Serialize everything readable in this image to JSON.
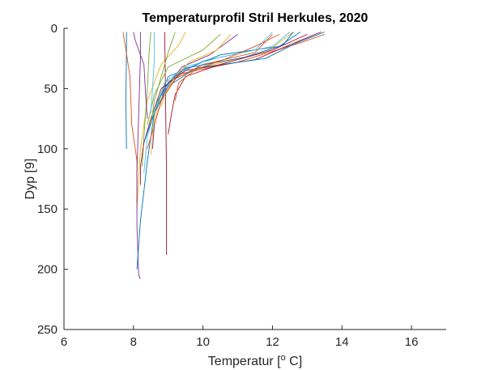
{
  "chart_data": {
    "type": "line",
    "title": "Temperaturprofil Stril Herkules, 2020",
    "xlabel": {
      "prefix": "Temperatur [",
      "sup": "o",
      "suffix": " C]"
    },
    "ylabel": "Dyp [9]",
    "xlim": [
      6,
      17
    ],
    "ylim": [
      0,
      250
    ],
    "y_reversed": true,
    "xticks": [
      6,
      8,
      10,
      12,
      14,
      16
    ],
    "yticks": [
      0,
      50,
      100,
      150,
      200,
      250
    ],
    "xtick_labels": [
      "6",
      "8",
      "10",
      "12",
      "14",
      "16"
    ],
    "ytick_labels": [
      "0",
      "50",
      "100",
      "150",
      "200",
      "250"
    ],
    "grid": false,
    "series": [
      {
        "color": "#0072BD",
        "points": [
          [
            7.8,
            3
          ],
          [
            7.8,
            20
          ],
          [
            7.78,
            60
          ],
          [
            7.8,
            100
          ]
        ]
      },
      {
        "color": "#D95319",
        "points": [
          [
            7.7,
            3
          ],
          [
            7.75,
            12
          ],
          [
            7.9,
            40
          ],
          [
            7.95,
            80
          ],
          [
            8.1,
            110
          ],
          [
            8.1,
            145
          ]
        ]
      },
      {
        "color": "#EDB120",
        "points": [
          [
            9.5,
            3
          ],
          [
            9.3,
            14
          ],
          [
            8.8,
            30
          ],
          [
            8.4,
            60
          ],
          [
            8.2,
            100
          ],
          [
            8.1,
            150
          ]
        ]
      },
      {
        "color": "#7E2F8E",
        "points": [
          [
            8.2,
            3
          ],
          [
            8.2,
            25
          ],
          [
            8.15,
            70
          ],
          [
            8.1,
            120
          ],
          [
            8.1,
            165
          ],
          [
            8.15,
            205
          ],
          [
            8.2,
            208
          ]
        ]
      },
      {
        "color": "#77AC30",
        "points": [
          [
            8.5,
            3
          ],
          [
            8.45,
            20
          ],
          [
            8.4,
            50
          ],
          [
            8.3,
            90
          ],
          [
            8.25,
            115
          ]
        ]
      },
      {
        "color": "#4DBEEE",
        "points": [
          [
            12.0,
            3
          ],
          [
            11.5,
            18
          ],
          [
            10.0,
            27
          ],
          [
            9.2,
            40
          ],
          [
            8.7,
            60
          ],
          [
            8.4,
            90
          ],
          [
            8.3,
            120
          ]
        ]
      },
      {
        "color": "#A2142F",
        "points": [
          [
            8.9,
            3
          ],
          [
            8.92,
            50
          ],
          [
            8.95,
            120
          ],
          [
            8.95,
            188
          ]
        ]
      },
      {
        "color": "#0072BD",
        "points": [
          [
            12.8,
            3
          ],
          [
            12.2,
            15
          ],
          [
            10.5,
            22
          ],
          [
            9.0,
            40
          ],
          [
            8.6,
            70
          ],
          [
            8.4,
            110
          ],
          [
            8.2,
            160
          ],
          [
            8.1,
            200
          ]
        ]
      },
      {
        "color": "#D95319",
        "points": [
          [
            13.5,
            5
          ],
          [
            12.8,
            12
          ],
          [
            11.0,
            28
          ],
          [
            9.3,
            38
          ],
          [
            8.8,
            60
          ],
          [
            8.5,
            90
          ],
          [
            8.4,
            100
          ]
        ]
      },
      {
        "color": "#EDB120",
        "points": [
          [
            12.6,
            3
          ],
          [
            11.8,
            20
          ],
          [
            10.0,
            32
          ],
          [
            8.9,
            45
          ],
          [
            8.6,
            75
          ],
          [
            8.5,
            105
          ]
        ]
      },
      {
        "color": "#7E2F8E",
        "points": [
          [
            11.0,
            5
          ],
          [
            10.2,
            22
          ],
          [
            9.4,
            32
          ],
          [
            8.9,
            50
          ],
          [
            8.6,
            80
          ],
          [
            8.55,
            100
          ]
        ]
      },
      {
        "color": "#77AC30",
        "points": [
          [
            10.5,
            5
          ],
          [
            10.0,
            18
          ],
          [
            9.0,
            32
          ],
          [
            8.6,
            55
          ],
          [
            8.4,
            80
          ]
        ]
      },
      {
        "color": "#4DBEEE",
        "points": [
          [
            12.5,
            3
          ],
          [
            12.0,
            15
          ],
          [
            10.5,
            24
          ],
          [
            9.5,
            32
          ],
          [
            8.9,
            45
          ],
          [
            8.6,
            70
          ]
        ]
      },
      {
        "color": "#A2142F",
        "points": [
          [
            13.4,
            3
          ],
          [
            12.8,
            10
          ],
          [
            11.5,
            26
          ],
          [
            9.5,
            35
          ],
          [
            8.8,
            50
          ],
          [
            8.5,
            75
          ],
          [
            8.3,
            95
          ],
          [
            8.2,
            115
          ],
          [
            8.2,
            130
          ]
        ]
      },
      {
        "color": "#0072BD",
        "points": [
          [
            13.5,
            3
          ],
          [
            12.7,
            12
          ],
          [
            11.8,
            25
          ],
          [
            9.8,
            33
          ],
          [
            9.0,
            48
          ],
          [
            8.6,
            70
          ],
          [
            8.3,
            95
          ]
        ]
      },
      {
        "color": "#D95319",
        "points": [
          [
            12.0,
            5
          ],
          [
            11.5,
            20
          ],
          [
            10.0,
            30
          ],
          [
            9.2,
            42
          ],
          [
            8.8,
            60
          ],
          [
            8.6,
            80
          ]
        ]
      },
      {
        "color": "#EDB120",
        "points": [
          [
            10.8,
            5
          ],
          [
            10.4,
            18
          ],
          [
            9.6,
            28
          ],
          [
            9.2,
            40
          ],
          [
            8.9,
            55
          ],
          [
            8.8,
            65
          ]
        ]
      },
      {
        "color": "#7E2F8E",
        "points": [
          [
            8.0,
            3
          ],
          [
            8.05,
            10
          ],
          [
            8.3,
            30
          ],
          [
            8.35,
            55
          ],
          [
            8.4,
            75
          ]
        ]
      },
      {
        "color": "#77AC30",
        "points": [
          [
            9.2,
            3
          ],
          [
            9.0,
            20
          ],
          [
            8.8,
            40
          ],
          [
            8.6,
            60
          ],
          [
            8.5,
            80
          ]
        ]
      },
      {
        "color": "#4DBEEE",
        "points": [
          [
            8.6,
            3
          ],
          [
            8.6,
            25
          ],
          [
            8.55,
            50
          ],
          [
            8.5,
            70
          ]
        ]
      },
      {
        "color": "#A2142F",
        "points": [
          [
            13.0,
            5
          ],
          [
            12.0,
            18
          ],
          [
            10.5,
            30
          ],
          [
            9.5,
            40
          ],
          [
            9.2,
            55
          ],
          [
            9.1,
            70
          ],
          [
            9.0,
            88
          ]
        ]
      },
      {
        "color": "#0072BD",
        "points": [
          [
            12.6,
            3
          ],
          [
            12.3,
            14
          ],
          [
            11.2,
            24
          ],
          [
            9.5,
            33
          ],
          [
            9.0,
            45
          ],
          [
            8.7,
            60
          ]
        ]
      },
      {
        "color": "#D95319",
        "points": [
          [
            12.2,
            5
          ],
          [
            11.5,
            15
          ],
          [
            10.6,
            26
          ],
          [
            9.8,
            34
          ],
          [
            9.3,
            45
          ],
          [
            9.2,
            60
          ]
        ]
      }
    ]
  }
}
